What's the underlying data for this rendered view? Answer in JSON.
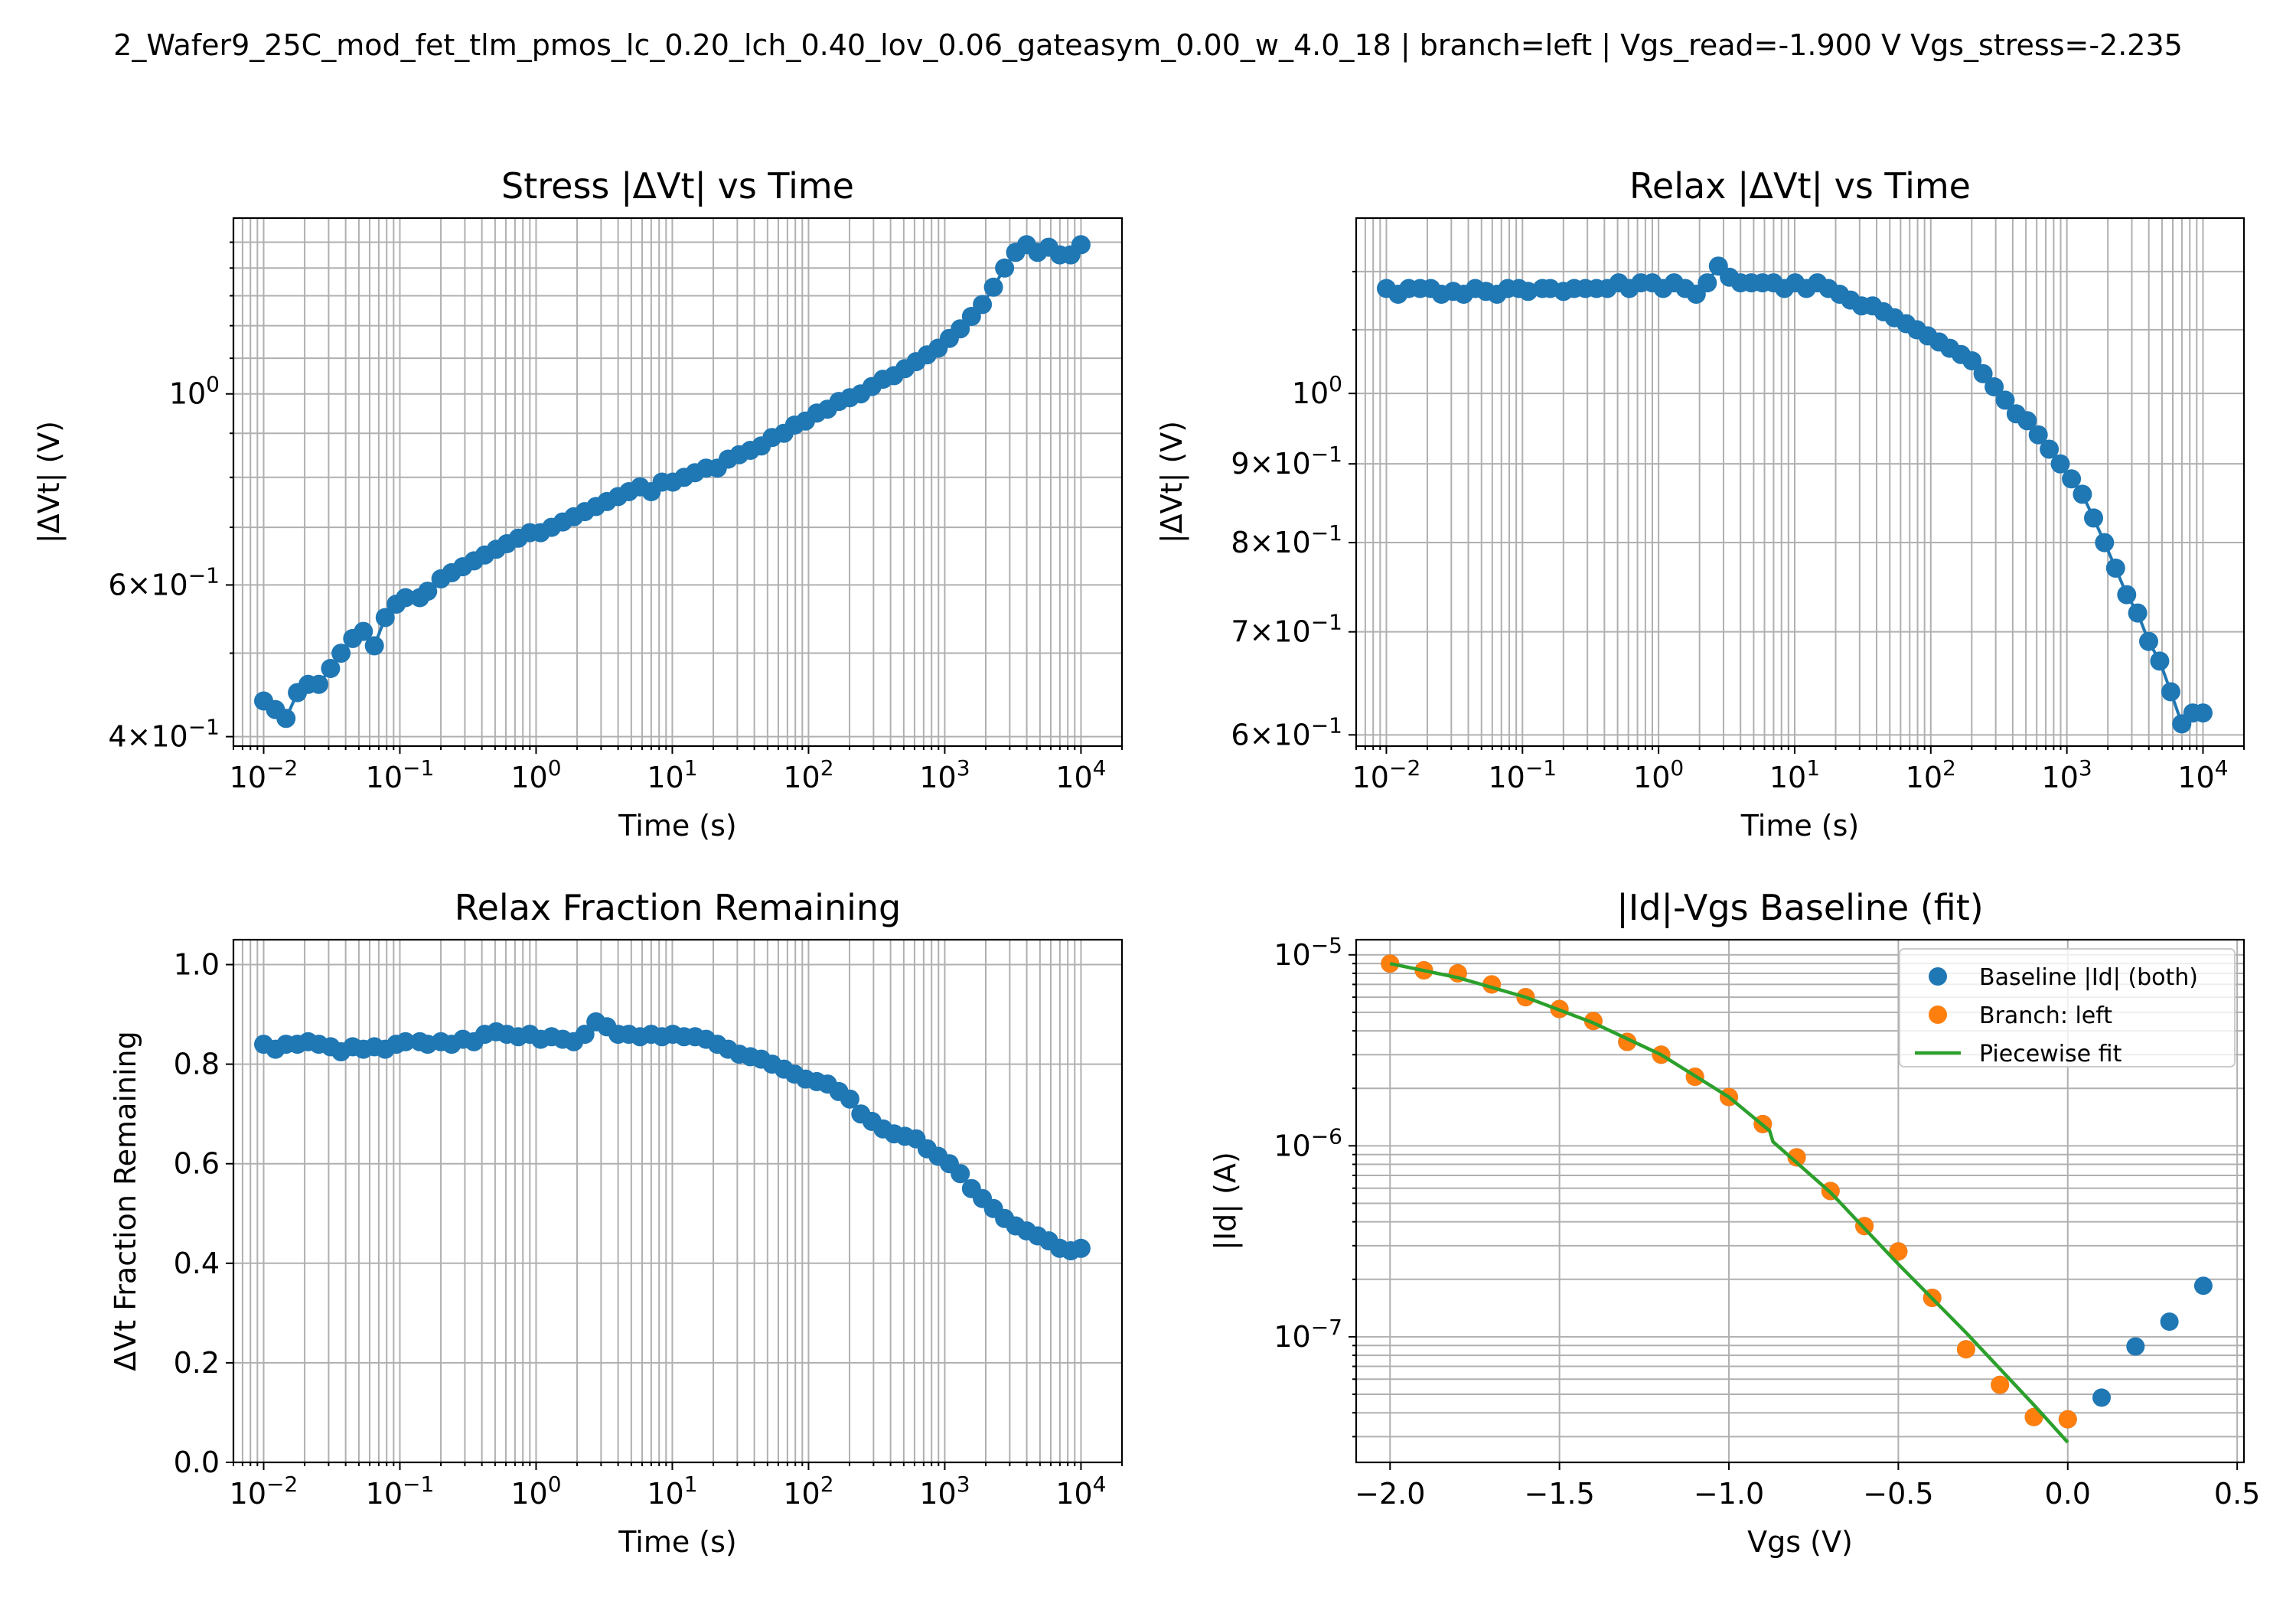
{
  "suptitle": "2_Wafer9_25C_mod_fet_tlm_pmos_lc_0.20_lch_0.40_lov_0.06_gateasym_0.00_w_4.0_18  |  branch=left  |  Vgs_read=-1.900 V  Vgs_stress=-2.235",
  "colors": {
    "series_blue": "#1f77b4",
    "series_orange": "#ff7f0e",
    "fit_green": "#2ca02c",
    "grid": "#b0b0b0"
  },
  "chart_data": [
    {
      "id": "stress",
      "type": "line",
      "title": "Stress |ΔVt| vs Time",
      "xlabel": "Time (s)",
      "ylabel": "|ΔVt| (V)",
      "xscale": "log",
      "yscale": "log",
      "xlim": [
        0.006,
        20000
      ],
      "ylim": [
        0.39,
        1.6
      ],
      "grid": true,
      "xtick_labels": [
        "10^-2",
        "10^-1",
        "10^0",
        "10^1",
        "10^2",
        "10^3",
        "10^4"
      ],
      "ytick_labels": [
        "4×10^-1",
        "6×10^-1",
        "10^0"
      ],
      "series": [
        {
          "marker": true,
          "x": [
            0.01,
            0.0122,
            0.0146,
            0.0177,
            0.0212,
            0.0254,
            0.031,
            0.037,
            0.045,
            0.054,
            0.065,
            0.078,
            0.094,
            0.11,
            0.14,
            0.16,
            0.2,
            0.24,
            0.29,
            0.35,
            0.42,
            0.51,
            0.61,
            0.74,
            0.9,
            1.08,
            1.3,
            1.57,
            1.89,
            2.28,
            2.75,
            3.31,
            4.0,
            4.8,
            5.8,
            7.0,
            8.4,
            10.1,
            12.2,
            14.7,
            17.7,
            21.4,
            25.7,
            31,
            37.4,
            45,
            54,
            66,
            79,
            95,
            115,
            138,
            167,
            201,
            242,
            292,
            352,
            424,
            511,
            616,
            742,
            894,
            1080,
            1300,
            1570,
            1890,
            2280,
            2750,
            3310,
            3990,
            4810,
            5800,
            6990,
            8420,
            10000
          ],
          "y": [
            0.44,
            0.43,
            0.42,
            0.45,
            0.46,
            0.46,
            0.48,
            0.5,
            0.52,
            0.53,
            0.51,
            0.55,
            0.57,
            0.58,
            0.58,
            0.59,
            0.61,
            0.62,
            0.63,
            0.64,
            0.65,
            0.66,
            0.67,
            0.68,
            0.69,
            0.69,
            0.7,
            0.71,
            0.72,
            0.73,
            0.74,
            0.75,
            0.76,
            0.77,
            0.78,
            0.77,
            0.79,
            0.79,
            0.8,
            0.81,
            0.82,
            0.82,
            0.84,
            0.85,
            0.86,
            0.87,
            0.89,
            0.9,
            0.92,
            0.93,
            0.95,
            0.96,
            0.98,
            0.99,
            1.0,
            1.02,
            1.04,
            1.05,
            1.07,
            1.09,
            1.11,
            1.13,
            1.16,
            1.19,
            1.23,
            1.27,
            1.33,
            1.4,
            1.46,
            1.49,
            1.46,
            1.48,
            1.45,
            1.45,
            1.49
          ]
        }
      ]
    },
    {
      "id": "relax",
      "type": "line",
      "title": "Relax |ΔVt| vs Time",
      "xlabel": "Time (s)",
      "ylabel": "|ΔVt| (V)",
      "xscale": "log",
      "yscale": "log",
      "xlim": [
        0.006,
        20000
      ],
      "ylim": [
        0.59,
        1.3
      ],
      "grid": true,
      "xtick_labels": [
        "10^-2",
        "10^-1",
        "10^0",
        "10^1",
        "10^2",
        "10^3",
        "10^4"
      ],
      "ytick_labels": [
        "6×10^-1",
        "7×10^-1",
        "8×10^-1",
        "9×10^-1",
        "10^0"
      ],
      "series": [
        {
          "marker": true,
          "x": [
            0.01,
            0.0122,
            0.0146,
            0.0177,
            0.0212,
            0.0254,
            0.031,
            0.037,
            0.045,
            0.054,
            0.065,
            0.078,
            0.094,
            0.11,
            0.14,
            0.16,
            0.2,
            0.24,
            0.29,
            0.35,
            0.42,
            0.51,
            0.61,
            0.74,
            0.9,
            1.08,
            1.3,
            1.57,
            1.89,
            2.28,
            2.75,
            3.31,
            4.0,
            4.8,
            5.8,
            7.0,
            8.4,
            10.1,
            12.2,
            14.7,
            17.7,
            21.4,
            25.7,
            31,
            37.4,
            45,
            54,
            66,
            79,
            95,
            115,
            138,
            167,
            201,
            242,
            292,
            352,
            424,
            511,
            616,
            742,
            894,
            1080,
            1300,
            1570,
            1890,
            2280,
            2750,
            3310,
            3990,
            4810,
            5800,
            6990,
            8420,
            10000
          ],
          "y": [
            1.17,
            1.16,
            1.17,
            1.17,
            1.17,
            1.16,
            1.165,
            1.16,
            1.17,
            1.165,
            1.16,
            1.17,
            1.17,
            1.165,
            1.17,
            1.17,
            1.165,
            1.17,
            1.17,
            1.17,
            1.17,
            1.18,
            1.17,
            1.18,
            1.18,
            1.17,
            1.18,
            1.17,
            1.16,
            1.18,
            1.21,
            1.19,
            1.18,
            1.18,
            1.18,
            1.18,
            1.17,
            1.18,
            1.17,
            1.18,
            1.17,
            1.16,
            1.15,
            1.14,
            1.14,
            1.13,
            1.12,
            1.11,
            1.1,
            1.09,
            1.08,
            1.07,
            1.06,
            1.05,
            1.03,
            1.01,
            0.99,
            0.97,
            0.96,
            0.94,
            0.92,
            0.9,
            0.88,
            0.86,
            0.83,
            0.8,
            0.77,
            0.74,
            0.72,
            0.69,
            0.67,
            0.64,
            0.61,
            0.62,
            0.62
          ]
        }
      ]
    },
    {
      "id": "fraction",
      "type": "line",
      "title": "Relax Fraction Remaining",
      "xlabel": "Time (s)",
      "ylabel": "ΔVt Fraction Remaining",
      "xscale": "log",
      "yscale": "linear",
      "xlim": [
        0.006,
        20000
      ],
      "ylim": [
        0.0,
        1.05
      ],
      "grid": true,
      "xtick_labels": [
        "10^-2",
        "10^-1",
        "10^0",
        "10^1",
        "10^2",
        "10^3",
        "10^4"
      ],
      "ytick_labels": [
        "0.0",
        "0.2",
        "0.4",
        "0.6",
        "0.8",
        "1.0"
      ],
      "series": [
        {
          "marker": true,
          "x": [
            0.01,
            0.0122,
            0.0146,
            0.0177,
            0.0212,
            0.0254,
            0.031,
            0.037,
            0.045,
            0.054,
            0.065,
            0.078,
            0.094,
            0.11,
            0.14,
            0.16,
            0.2,
            0.24,
            0.29,
            0.35,
            0.42,
            0.51,
            0.61,
            0.74,
            0.9,
            1.08,
            1.3,
            1.57,
            1.89,
            2.28,
            2.75,
            3.31,
            4.0,
            4.8,
            5.8,
            7.0,
            8.4,
            10.1,
            12.2,
            14.7,
            17.7,
            21.4,
            25.7,
            31,
            37.4,
            45,
            54,
            66,
            79,
            95,
            115,
            138,
            167,
            201,
            242,
            292,
            352,
            424,
            511,
            616,
            742,
            894,
            1080,
            1300,
            1570,
            1890,
            2280,
            2750,
            3310,
            3990,
            4810,
            5800,
            6990,
            8420,
            10000
          ],
          "y": [
            0.84,
            0.83,
            0.84,
            0.84,
            0.845,
            0.84,
            0.835,
            0.825,
            0.835,
            0.83,
            0.835,
            0.83,
            0.84,
            0.845,
            0.845,
            0.84,
            0.845,
            0.84,
            0.85,
            0.845,
            0.86,
            0.865,
            0.86,
            0.855,
            0.86,
            0.85,
            0.855,
            0.85,
            0.845,
            0.86,
            0.885,
            0.875,
            0.86,
            0.86,
            0.855,
            0.86,
            0.855,
            0.86,
            0.855,
            0.855,
            0.85,
            0.84,
            0.83,
            0.82,
            0.815,
            0.81,
            0.8,
            0.79,
            0.78,
            0.77,
            0.765,
            0.76,
            0.745,
            0.73,
            0.7,
            0.685,
            0.67,
            0.66,
            0.655,
            0.65,
            0.63,
            0.615,
            0.6,
            0.58,
            0.55,
            0.53,
            0.51,
            0.49,
            0.475,
            0.465,
            0.455,
            0.445,
            0.43,
            0.425,
            0.43
          ]
        }
      ]
    },
    {
      "id": "idvgs",
      "type": "scatter",
      "title": "|Id|-Vgs Baseline (fit)",
      "xlabel": "Vgs (V)",
      "ylabel": "|Id| (A)",
      "xscale": "linear",
      "yscale": "log",
      "xlim": [
        -2.1,
        0.52
      ],
      "ylim": [
        2.2e-08,
        1.2e-05
      ],
      "grid": true,
      "legend_position": "top-right",
      "xtick_labels": [
        "−2.0",
        "−1.5",
        "−1.0",
        "−0.5",
        "0.0",
        "0.5"
      ],
      "ytick_labels": [
        "10^-7",
        "10^-6",
        "10^-5"
      ],
      "series": [
        {
          "name": "Baseline |Id| (both)",
          "marker": true,
          "x": [
            -2.0,
            -1.9,
            -1.8,
            -1.7,
            -1.6,
            -1.5,
            -1.4,
            -1.3,
            -1.2,
            -1.1,
            -1.0,
            -0.9,
            -0.8,
            -0.7,
            -0.6,
            -0.5,
            -0.4,
            -0.3,
            -0.2,
            -0.1,
            0.0,
            0.1,
            0.2,
            0.3,
            0.4
          ],
          "y": [
            9e-06,
            8.3e-06,
            8e-06,
            7e-06,
            6e-06,
            5.2e-06,
            4.5e-06,
            3.5e-06,
            3e-06,
            2.3e-06,
            1.8e-06,
            1.3e-06,
            8.7e-07,
            5.8e-07,
            3.8e-07,
            2.8e-07,
            1.6e-07,
            8.6e-08,
            5.6e-08,
            3.8e-08,
            3.7e-08,
            4.8e-08,
            8.9e-08,
            1.2e-07,
            1.85e-07
          ]
        },
        {
          "name": "Branch: left",
          "marker": true,
          "x": [
            -2.0,
            -1.9,
            -1.8,
            -1.7,
            -1.6,
            -1.5,
            -1.4,
            -1.3,
            -1.2,
            -1.1,
            -1.0,
            -0.9,
            -0.8,
            -0.7,
            -0.6,
            -0.5,
            -0.4,
            -0.3,
            -0.2,
            -0.1,
            0.0
          ],
          "y": [
            9e-06,
            8.3e-06,
            8e-06,
            7e-06,
            6e-06,
            5.2e-06,
            4.5e-06,
            3.5e-06,
            3e-06,
            2.3e-06,
            1.8e-06,
            1.3e-06,
            8.7e-07,
            5.8e-07,
            3.8e-07,
            2.8e-07,
            1.6e-07,
            8.6e-08,
            5.6e-08,
            3.8e-08,
            3.7e-08
          ]
        },
        {
          "name": "Piecewise fit",
          "marker": false,
          "x": [
            -2.0,
            -1.8,
            -1.6,
            -1.4,
            -1.2,
            -1.0,
            -0.88,
            -0.87,
            -0.7,
            -0.5,
            -0.3,
            -0.1,
            0.0
          ],
          "y": [
            9e-06,
            7.6e-06,
            6e-06,
            4.4e-06,
            3e-06,
            1.8e-06,
            1.2e-06,
            1.05e-06,
            5.7e-07,
            2.4e-07,
            1.05e-07,
            4.4e-08,
            2.8e-08
          ]
        }
      ]
    }
  ]
}
